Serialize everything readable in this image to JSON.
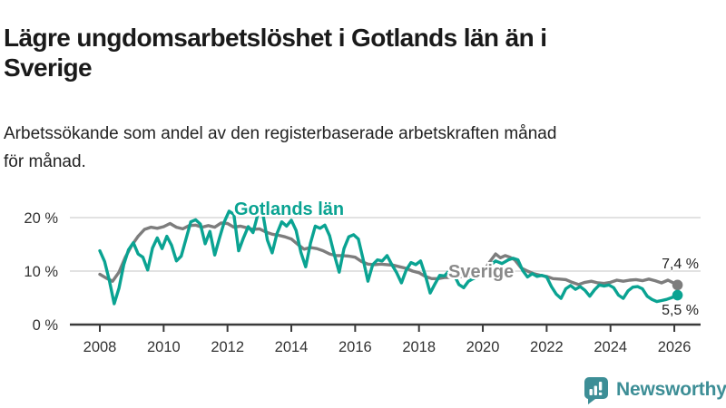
{
  "header": {
    "title": "Lägre ungdomsarbetslöshet i Gotlands län än i\nSverige",
    "subtitle": "Arbetssökande som andel av den registerbaserade arbetskraften månad\nför månad."
  },
  "colors": {
    "gotland_line": "#0aa392",
    "sverige_line": "#7d7d7d",
    "sverige_label": "#8a8a8a",
    "grid": "#d8d8d8",
    "axis": "#3a3a3a",
    "tick_text": "#333333",
    "brand": "#3d8e96"
  },
  "chart_data": {
    "type": "line",
    "title": "",
    "xlabel": "",
    "ylabel": "",
    "xlim": [
      2008,
      2026.35
    ],
    "ylim": [
      0,
      23
    ],
    "grid": "horizontal",
    "legend": "inline-labels",
    "y_ticks": [
      {
        "value": 0,
        "label": "0 %"
      },
      {
        "value": 10,
        "label": "10 %"
      },
      {
        "value": 20,
        "label": "20 %"
      }
    ],
    "x_ticks": [
      {
        "value": 2008,
        "label": "2008"
      },
      {
        "value": 2010,
        "label": "2010"
      },
      {
        "value": 2012,
        "label": "2012"
      },
      {
        "value": 2014,
        "label": "2014"
      },
      {
        "value": 2016,
        "label": "2016"
      },
      {
        "value": 2018,
        "label": "2018"
      },
      {
        "value": 2020,
        "label": "2020"
      },
      {
        "value": 2022,
        "label": "2022"
      },
      {
        "value": 2024,
        "label": "2024"
      },
      {
        "value": 2026,
        "label": "2026"
      }
    ],
    "series": [
      {
        "name": "Sverige",
        "color": "#7d7d7d",
        "end_label": "7,4 %",
        "end_value": 7.4,
        "points": [
          [
            2008.0,
            9.4
          ],
          [
            2008.2,
            8.7
          ],
          [
            2008.4,
            8.1
          ],
          [
            2008.6,
            9.8
          ],
          [
            2008.8,
            12.6
          ],
          [
            2009.0,
            14.8
          ],
          [
            2009.2,
            16.5
          ],
          [
            2009.4,
            17.8
          ],
          [
            2009.6,
            18.2
          ],
          [
            2009.8,
            18.0
          ],
          [
            2010.0,
            18.3
          ],
          [
            2010.2,
            18.9
          ],
          [
            2010.4,
            18.2
          ],
          [
            2010.6,
            17.9
          ],
          [
            2010.8,
            18.5
          ],
          [
            2011.0,
            18.6
          ],
          [
            2011.2,
            18.2
          ],
          [
            2011.4,
            18.5
          ],
          [
            2011.6,
            18.2
          ],
          [
            2011.8,
            19.0
          ],
          [
            2012.0,
            18.9
          ],
          [
            2012.2,
            18.2
          ],
          [
            2012.4,
            18.4
          ],
          [
            2012.6,
            18.1
          ],
          [
            2012.8,
            17.8
          ],
          [
            2013.0,
            17.9
          ],
          [
            2013.2,
            17.3
          ],
          [
            2013.4,
            16.9
          ],
          [
            2013.6,
            16.7
          ],
          [
            2013.8,
            16.4
          ],
          [
            2014.0,
            16.0
          ],
          [
            2014.2,
            15.0
          ],
          [
            2014.4,
            14.1
          ],
          [
            2014.6,
            14.4
          ],
          [
            2014.8,
            14.2
          ],
          [
            2015.0,
            13.8
          ],
          [
            2015.2,
            13.2
          ],
          [
            2015.4,
            12.9
          ],
          [
            2015.6,
            12.9
          ],
          [
            2015.8,
            12.8
          ],
          [
            2016.0,
            12.6
          ],
          [
            2016.2,
            11.8
          ],
          [
            2016.4,
            11.3
          ],
          [
            2016.6,
            11.2
          ],
          [
            2016.8,
            11.3
          ],
          [
            2017.0,
            11.2
          ],
          [
            2017.2,
            11.1
          ],
          [
            2017.4,
            10.8
          ],
          [
            2017.6,
            10.5
          ],
          [
            2017.8,
            10.0
          ],
          [
            2018.0,
            9.7
          ],
          [
            2018.2,
            9.0
          ],
          [
            2018.4,
            8.6
          ],
          [
            2018.6,
            8.6
          ],
          [
            2018.8,
            8.8
          ],
          [
            2019.0,
            8.8
          ],
          [
            2019.2,
            8.9
          ],
          [
            2019.4,
            9.0
          ],
          [
            2019.6,
            9.1
          ],
          [
            2019.8,
            9.3
          ],
          [
            2020.0,
            9.7
          ],
          [
            2020.2,
            11.6
          ],
          [
            2020.4,
            13.2
          ],
          [
            2020.55,
            12.5
          ],
          [
            2020.7,
            12.9
          ],
          [
            2020.85,
            12.6
          ],
          [
            2021.0,
            12.1
          ],
          [
            2021.2,
            10.6
          ],
          [
            2021.4,
            10.0
          ],
          [
            2021.6,
            9.5
          ],
          [
            2021.8,
            9.2
          ],
          [
            2022.0,
            9.0
          ],
          [
            2022.2,
            8.6
          ],
          [
            2022.4,
            8.5
          ],
          [
            2022.6,
            8.4
          ],
          [
            2022.8,
            7.9
          ],
          [
            2023.0,
            7.5
          ],
          [
            2023.2,
            7.9
          ],
          [
            2023.4,
            8.1
          ],
          [
            2023.6,
            7.8
          ],
          [
            2023.8,
            7.7
          ],
          [
            2024.0,
            7.9
          ],
          [
            2024.2,
            8.3
          ],
          [
            2024.4,
            8.1
          ],
          [
            2024.6,
            8.3
          ],
          [
            2024.8,
            8.4
          ],
          [
            2025.0,
            8.2
          ],
          [
            2025.2,
            8.5
          ],
          [
            2025.4,
            8.2
          ],
          [
            2025.6,
            7.8
          ],
          [
            2025.8,
            8.3
          ],
          [
            2026.1,
            7.4
          ]
        ]
      },
      {
        "name": "Gotlands län",
        "color": "#0aa392",
        "end_label": "5,5 %",
        "end_value": 5.5,
        "points": [
          [
            2008.0,
            13.8
          ],
          [
            2008.15,
            11.8
          ],
          [
            2008.3,
            8.2
          ],
          [
            2008.45,
            3.9
          ],
          [
            2008.6,
            6.8
          ],
          [
            2008.75,
            11.2
          ],
          [
            2008.9,
            14.0
          ],
          [
            2009.05,
            15.3
          ],
          [
            2009.2,
            13.2
          ],
          [
            2009.35,
            12.6
          ],
          [
            2009.5,
            10.2
          ],
          [
            2009.65,
            14.3
          ],
          [
            2009.8,
            16.2
          ],
          [
            2009.95,
            14.2
          ],
          [
            2010.1,
            16.5
          ],
          [
            2010.25,
            14.8
          ],
          [
            2010.4,
            11.9
          ],
          [
            2010.55,
            12.8
          ],
          [
            2010.7,
            16.0
          ],
          [
            2010.85,
            19.2
          ],
          [
            2011.0,
            19.6
          ],
          [
            2011.15,
            18.8
          ],
          [
            2011.3,
            15.1
          ],
          [
            2011.45,
            17.4
          ],
          [
            2011.6,
            13.0
          ],
          [
            2011.75,
            16.2
          ],
          [
            2011.9,
            19.2
          ],
          [
            2012.05,
            21.2
          ],
          [
            2012.2,
            20.6
          ],
          [
            2012.35,
            13.8
          ],
          [
            2012.5,
            16.2
          ],
          [
            2012.65,
            18.3
          ],
          [
            2012.8,
            17.2
          ],
          [
            2012.95,
            20.6
          ],
          [
            2013.1,
            21.0
          ],
          [
            2013.25,
            15.8
          ],
          [
            2013.4,
            13.4
          ],
          [
            2013.55,
            17.0
          ],
          [
            2013.7,
            19.2
          ],
          [
            2013.85,
            18.4
          ],
          [
            2014.0,
            19.5
          ],
          [
            2014.15,
            17.6
          ],
          [
            2014.3,
            13.5
          ],
          [
            2014.45,
            10.8
          ],
          [
            2014.6,
            15.2
          ],
          [
            2014.75,
            18.4
          ],
          [
            2014.9,
            18.0
          ],
          [
            2015.05,
            18.6
          ],
          [
            2015.2,
            16.6
          ],
          [
            2015.35,
            13.0
          ],
          [
            2015.5,
            9.8
          ],
          [
            2015.65,
            14.2
          ],
          [
            2015.8,
            16.4
          ],
          [
            2015.95,
            16.8
          ],
          [
            2016.1,
            16.0
          ],
          [
            2016.25,
            12.2
          ],
          [
            2016.4,
            8.1
          ],
          [
            2016.55,
            11.2
          ],
          [
            2016.7,
            12.1
          ],
          [
            2016.85,
            11.9
          ],
          [
            2017.0,
            12.9
          ],
          [
            2017.15,
            11.2
          ],
          [
            2017.3,
            9.7
          ],
          [
            2017.45,
            7.8
          ],
          [
            2017.6,
            10.2
          ],
          [
            2017.75,
            11.6
          ],
          [
            2017.9,
            11.2
          ],
          [
            2018.05,
            11.9
          ],
          [
            2018.2,
            9.2
          ],
          [
            2018.35,
            5.9
          ],
          [
            2018.5,
            7.6
          ],
          [
            2018.65,
            9.2
          ],
          [
            2018.8,
            9.1
          ],
          [
            2018.95,
            10.1
          ],
          [
            2019.1,
            9.3
          ],
          [
            2019.25,
            7.5
          ],
          [
            2019.4,
            6.9
          ],
          [
            2019.55,
            8.1
          ],
          [
            2019.7,
            8.6
          ],
          [
            2019.85,
            9.0
          ],
          [
            2020.0,
            9.4
          ],
          [
            2020.2,
            10.9
          ],
          [
            2020.4,
            11.9
          ],
          [
            2020.6,
            11.4
          ],
          [
            2020.8,
            12.1
          ],
          [
            2020.95,
            12.4
          ],
          [
            2021.1,
            12.1
          ],
          [
            2021.25,
            10.1
          ],
          [
            2021.4,
            8.9
          ],
          [
            2021.55,
            9.5
          ],
          [
            2021.7,
            9.0
          ],
          [
            2021.85,
            9.2
          ],
          [
            2022.0,
            8.9
          ],
          [
            2022.15,
            7.1
          ],
          [
            2022.3,
            5.7
          ],
          [
            2022.45,
            4.9
          ],
          [
            2022.6,
            6.7
          ],
          [
            2022.75,
            7.3
          ],
          [
            2022.9,
            6.6
          ],
          [
            2023.05,
            7.1
          ],
          [
            2023.2,
            6.4
          ],
          [
            2023.35,
            5.3
          ],
          [
            2023.5,
            6.5
          ],
          [
            2023.65,
            7.4
          ],
          [
            2023.8,
            7.2
          ],
          [
            2023.95,
            7.4
          ],
          [
            2024.1,
            6.9
          ],
          [
            2024.25,
            5.5
          ],
          [
            2024.4,
            4.9
          ],
          [
            2024.55,
            6.3
          ],
          [
            2024.7,
            7.0
          ],
          [
            2024.85,
            7.1
          ],
          [
            2025.0,
            6.7
          ],
          [
            2025.15,
            5.3
          ],
          [
            2025.3,
            4.7
          ],
          [
            2025.45,
            4.3
          ],
          [
            2025.6,
            4.5
          ],
          [
            2025.75,
            4.7
          ],
          [
            2025.9,
            5.0
          ],
          [
            2026.1,
            5.5
          ]
        ]
      }
    ]
  },
  "footer": {
    "brand": "Newsworthy"
  }
}
